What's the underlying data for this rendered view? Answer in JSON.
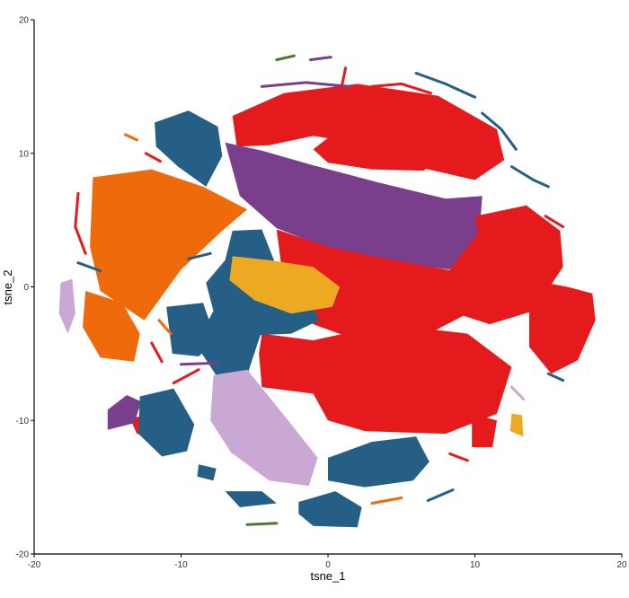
{
  "chart_data": {
    "type": "scatter",
    "title": "",
    "xlabel": "tsne_1",
    "ylabel": "tsne_2",
    "xlim": [
      -20,
      20
    ],
    "ylim": [
      -20,
      20
    ],
    "xticks": [
      -20,
      -10,
      0,
      10,
      20
    ],
    "yticks": [
      -20,
      -10,
      0,
      10,
      20
    ],
    "grid": false,
    "legend": "none",
    "colors": {
      "red": "#E41A1C",
      "purple": "#7A3F8C",
      "blue": "#265F86",
      "orange": "#EE6A0B",
      "gold": "#EDA922",
      "lavender": "#C9A8D4",
      "green": "#4A7A2E",
      "axis": "#000000"
    },
    "clusters": [
      {
        "color": "red",
        "points": [
          [
            -6.5,
            12.8
          ],
          [
            -3,
            14.5
          ],
          [
            2,
            15.2
          ],
          [
            7.5,
            14.3
          ],
          [
            11.5,
            11.8
          ],
          [
            12,
            9.5
          ],
          [
            10,
            8
          ],
          [
            6,
            9
          ],
          [
            2.5,
            10.7
          ],
          [
            -1,
            11.3
          ],
          [
            -4,
            10.6
          ],
          [
            -6.2,
            10.5
          ]
        ]
      },
      {
        "color": "red",
        "points": [
          [
            -1,
            10.3
          ],
          [
            1,
            12
          ],
          [
            5,
            12.7
          ],
          [
            7.5,
            11.8
          ],
          [
            8,
            10
          ],
          [
            6.5,
            8.7
          ],
          [
            3,
            8.8
          ],
          [
            0,
            9.3
          ]
        ]
      },
      {
        "color": "purple",
        "points": [
          [
            -7,
            10.8
          ],
          [
            -4.5,
            10.2
          ],
          [
            -1,
            9.1
          ],
          [
            3.5,
            7.8
          ],
          [
            8,
            6.6
          ],
          [
            10.5,
            6.8
          ],
          [
            10.3,
            4
          ],
          [
            8.3,
            1.3
          ],
          [
            4,
            1.9
          ],
          [
            0,
            2.9
          ],
          [
            -3.5,
            4.4
          ],
          [
            -6,
            6.8
          ]
        ]
      },
      {
        "color": "red",
        "points": [
          [
            -3.5,
            4.3
          ],
          [
            0,
            3
          ],
          [
            4,
            2.1
          ],
          [
            8.5,
            1.2
          ],
          [
            9.5,
            -2
          ],
          [
            6,
            -4
          ],
          [
            2,
            -4
          ],
          [
            -1,
            -2.8
          ],
          [
            -3,
            -0.8
          ],
          [
            -3.2,
            1.8
          ]
        ]
      },
      {
        "color": "red",
        "points": [
          [
            10,
            5.3
          ],
          [
            13.5,
            6.1
          ],
          [
            15.8,
            4.2
          ],
          [
            16,
            1.5
          ],
          [
            14,
            -1.8
          ],
          [
            11,
            -2.8
          ],
          [
            8.2,
            -1.8
          ],
          [
            8.3,
            1.3
          ],
          [
            10.2,
            4
          ]
        ]
      },
      {
        "color": "red",
        "points": [
          [
            14.8,
            0.3
          ],
          [
            16.3,
            0
          ],
          [
            18,
            -0.5
          ],
          [
            18.2,
            -2.5
          ],
          [
            17,
            -5.5
          ],
          [
            15.2,
            -6.5
          ],
          [
            13.7,
            -4.5
          ],
          [
            13.7,
            -1.8
          ]
        ]
      },
      {
        "color": "red",
        "points": [
          [
            -4.5,
            -3.5
          ],
          [
            -1,
            -4
          ],
          [
            4,
            -2.8
          ],
          [
            9.5,
            -3.5
          ],
          [
            12.5,
            -6
          ],
          [
            11.5,
            -9.5
          ],
          [
            8,
            -11
          ],
          [
            2.5,
            -10.8
          ],
          [
            0,
            -10
          ],
          [
            -1,
            -8
          ],
          [
            -4.5,
            -7.5
          ],
          [
            -4.7,
            -5
          ]
        ]
      },
      {
        "color": "red",
        "points": [
          [
            9.8,
            -9.5
          ],
          [
            11.5,
            -10
          ],
          [
            11.2,
            -12
          ],
          [
            9.8,
            -12
          ]
        ]
      },
      {
        "color": "red",
        "points": [
          [
            -13.5,
            -9.8
          ],
          [
            -11,
            -9.5
          ],
          [
            -10,
            -10.5
          ],
          [
            -11,
            -11.5
          ],
          [
            -13,
            -11
          ]
        ]
      },
      {
        "color": "blue",
        "points": [
          [
            -11.8,
            12.3
          ],
          [
            -9.5,
            13.2
          ],
          [
            -7.5,
            12
          ],
          [
            -7.2,
            9.8
          ],
          [
            -8.3,
            7.5
          ],
          [
            -10.2,
            9
          ],
          [
            -11.7,
            10.5
          ]
        ]
      },
      {
        "color": "orange",
        "points": [
          [
            -16,
            8.2
          ],
          [
            -12,
            8.8
          ],
          [
            -8.5,
            7.5
          ],
          [
            -5.5,
            5.8
          ],
          [
            -7.2,
            4.2
          ],
          [
            -10,
            1.3
          ],
          [
            -12.5,
            -2.5
          ],
          [
            -15.5,
            -0.3
          ],
          [
            -16.2,
            3
          ]
        ]
      },
      {
        "color": "blue",
        "points": [
          [
            -6.5,
            4.2
          ],
          [
            -4.5,
            4.3
          ],
          [
            -3.5,
            1.5
          ],
          [
            -1.5,
            -0.5
          ],
          [
            -0.6,
            -2.5
          ],
          [
            -2.5,
            -3.5
          ],
          [
            -4.6,
            -3.6
          ],
          [
            -5.5,
            -6.6
          ],
          [
            -7.5,
            -6.8
          ],
          [
            -9,
            -4.3
          ],
          [
            -7.8,
            -1.8
          ],
          [
            -8.3,
            0.3
          ],
          [
            -7,
            2
          ]
        ]
      },
      {
        "color": "blue",
        "points": [
          [
            -11,
            -1.5
          ],
          [
            -8.5,
            -1.2
          ],
          [
            -7.6,
            -4
          ],
          [
            -8.8,
            -5.2
          ],
          [
            -10.6,
            -5
          ]
        ]
      },
      {
        "color": "gold",
        "points": [
          [
            -6.5,
            2.3
          ],
          [
            -4,
            2
          ],
          [
            -1,
            1.5
          ],
          [
            0.8,
            0
          ],
          [
            0.3,
            -1.5
          ],
          [
            -2.5,
            -2
          ],
          [
            -5,
            -1
          ],
          [
            -6.7,
            0.5
          ]
        ]
      },
      {
        "color": "orange",
        "points": [
          [
            -16.5,
            -0.3
          ],
          [
            -14,
            -1.2
          ],
          [
            -12.8,
            -3.5
          ],
          [
            -13.2,
            -5.6
          ],
          [
            -15.5,
            -5.3
          ],
          [
            -16.7,
            -3
          ]
        ]
      },
      {
        "color": "purple",
        "points": [
          [
            -15,
            -9.2
          ],
          [
            -13.7,
            -8.1
          ],
          [
            -12.7,
            -8.6
          ],
          [
            -13.2,
            -10.2
          ],
          [
            -15,
            -10.7
          ]
        ]
      },
      {
        "color": "blue",
        "points": [
          [
            -12.8,
            -8.2
          ],
          [
            -10.5,
            -7.6
          ],
          [
            -9.1,
            -10.3
          ],
          [
            -9.6,
            -12.3
          ],
          [
            -11.3,
            -12.7
          ],
          [
            -12.9,
            -11
          ]
        ]
      },
      {
        "color": "lavender",
        "points": [
          [
            -7.8,
            -6.6
          ],
          [
            -5.5,
            -6.2
          ],
          [
            -3,
            -9.6
          ],
          [
            -0.7,
            -12.8
          ],
          [
            -1.3,
            -14.9
          ],
          [
            -4,
            -14.5
          ],
          [
            -6.6,
            -12.4
          ],
          [
            -8,
            -10
          ]
        ]
      },
      {
        "color": "blue",
        "points": [
          [
            0,
            -12.8
          ],
          [
            3,
            -11.6
          ],
          [
            6,
            -11.2
          ],
          [
            6.9,
            -13.1
          ],
          [
            5.8,
            -14.5
          ],
          [
            2.5,
            -15
          ],
          [
            0,
            -14.5
          ]
        ]
      },
      {
        "color": "blue",
        "points": [
          [
            -2,
            -16.1
          ],
          [
            0.5,
            -15.3
          ],
          [
            2.3,
            -16.5
          ],
          [
            2,
            -18
          ],
          [
            -1,
            -17.9
          ],
          [
            -2,
            -17
          ]
        ]
      },
      {
        "color": "blue",
        "points": [
          [
            -7,
            -15.3
          ],
          [
            -4.5,
            -15.3
          ],
          [
            -3.5,
            -16.2
          ],
          [
            -6,
            -16.5
          ]
        ]
      },
      {
        "color": "blue",
        "points": [
          [
            -8.8,
            -13.3
          ],
          [
            -7.6,
            -13.6
          ],
          [
            -7.8,
            -14.5
          ],
          [
            -8.9,
            -14.2
          ]
        ]
      },
      {
        "color": "lavender",
        "points": [
          [
            -18.2,
            0.3
          ],
          [
            -17.4,
            0.6
          ],
          [
            -17.2,
            -2
          ],
          [
            -17.7,
            -3.5
          ],
          [
            -18.3,
            -2
          ]
        ]
      },
      {
        "color": "gold",
        "points": [
          [
            12.5,
            -9.5
          ],
          [
            13.2,
            -9.6
          ],
          [
            13.3,
            -11.2
          ],
          [
            12.4,
            -10.8
          ]
        ]
      }
    ],
    "slivers": [
      {
        "color": "purple",
        "points": [
          [
            -4.5,
            15
          ],
          [
            -1.5,
            15.3
          ],
          [
            1.5,
            15
          ]
        ]
      },
      {
        "color": "purple",
        "points": [
          [
            -1.2,
            17
          ],
          [
            0.2,
            17.2
          ]
        ]
      },
      {
        "color": "green",
        "points": [
          [
            -3.5,
            17
          ],
          [
            -2.3,
            17.3
          ]
        ]
      },
      {
        "color": "red",
        "points": [
          [
            1.2,
            16.4
          ],
          [
            0.9,
            14.8
          ]
        ]
      },
      {
        "color": "red",
        "points": [
          [
            3,
            15
          ],
          [
            5,
            15.2
          ],
          [
            7,
            14.5
          ]
        ]
      },
      {
        "color": "blue",
        "points": [
          [
            6,
            16
          ],
          [
            8,
            15.2
          ],
          [
            10,
            14.2
          ]
        ]
      },
      {
        "color": "blue",
        "points": [
          [
            10.5,
            13
          ],
          [
            11.8,
            11.8
          ],
          [
            12.8,
            10.3
          ]
        ]
      },
      {
        "color": "blue",
        "points": [
          [
            12.5,
            9
          ],
          [
            14,
            8
          ],
          [
            15,
            7.5
          ]
        ]
      },
      {
        "color": "red",
        "points": [
          [
            -17,
            7
          ],
          [
            -17.2,
            4.5
          ],
          [
            -16.5,
            2.5
          ]
        ]
      },
      {
        "color": "red",
        "points": [
          [
            -12.4,
            10
          ],
          [
            -11.4,
            9.4
          ]
        ]
      },
      {
        "color": "blue",
        "points": [
          [
            -17,
            1.8
          ],
          [
            -15.5,
            1.2
          ]
        ]
      },
      {
        "color": "orange",
        "points": [
          [
            -11.5,
            -2.5
          ],
          [
            -10.7,
            -3.5
          ]
        ]
      },
      {
        "color": "purple",
        "points": [
          [
            -10,
            -5.8
          ],
          [
            -7.5,
            -5.7
          ]
        ]
      },
      {
        "color": "red",
        "points": [
          [
            -10.5,
            -7.2
          ],
          [
            -8.8,
            -6.2
          ]
        ]
      },
      {
        "color": "blue",
        "points": [
          [
            15,
            -6.5
          ],
          [
            16,
            -7
          ]
        ]
      },
      {
        "color": "blue",
        "points": [
          [
            6.8,
            -16
          ],
          [
            8.5,
            -15.2
          ]
        ]
      },
      {
        "color": "orange",
        "points": [
          [
            3,
            -16.2
          ],
          [
            5,
            -15.8
          ]
        ]
      },
      {
        "color": "green",
        "points": [
          [
            -5.5,
            -17.8
          ],
          [
            -3.5,
            -17.7
          ]
        ]
      },
      {
        "color": "red",
        "points": [
          [
            8.3,
            -12.5
          ],
          [
            9.5,
            -13
          ]
        ]
      },
      {
        "color": "red",
        "points": [
          [
            14.8,
            5.3
          ],
          [
            16,
            4.5
          ]
        ]
      },
      {
        "color": "blue",
        "points": [
          [
            -9.5,
            2.1
          ],
          [
            -8,
            2.5
          ]
        ]
      },
      {
        "color": "red",
        "points": [
          [
            -12,
            -4.2
          ],
          [
            -11.3,
            -5.6
          ]
        ]
      },
      {
        "color": "orange",
        "points": [
          [
            -13.8,
            11.4
          ],
          [
            -13,
            11
          ]
        ]
      },
      {
        "color": "lavender",
        "points": [
          [
            12.5,
            -7.5
          ],
          [
            13.3,
            -8.4
          ]
        ]
      }
    ]
  }
}
